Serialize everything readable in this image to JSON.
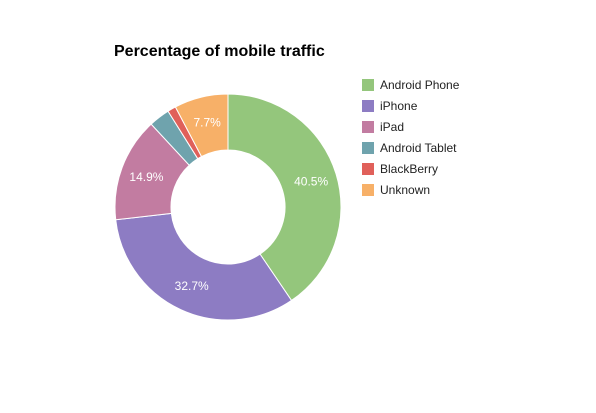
{
  "chart_data": {
    "type": "pie",
    "style": "donut",
    "title": "Percentage of mobile traffic",
    "legend_position": "right",
    "slices": [
      {
        "label": "Android Phone",
        "value": 40.5,
        "color": "#94c67c",
        "data_label": "40.5%"
      },
      {
        "label": "iPhone",
        "value": 32.7,
        "color": "#8d7cc3",
        "data_label": "32.7%"
      },
      {
        "label": "iPad",
        "value": 14.9,
        "color": "#c27ca1",
        "data_label": "14.9%"
      },
      {
        "label": "Android Tablet",
        "value": 3.0,
        "color": "#6fa3ad",
        "data_label": ""
      },
      {
        "label": "BlackBerry",
        "value": 1.2,
        "color": "#e0605a",
        "data_label": ""
      },
      {
        "label": "Unknown",
        "value": 7.7,
        "color": "#f7b068",
        "data_label": "7.7%"
      }
    ]
  }
}
